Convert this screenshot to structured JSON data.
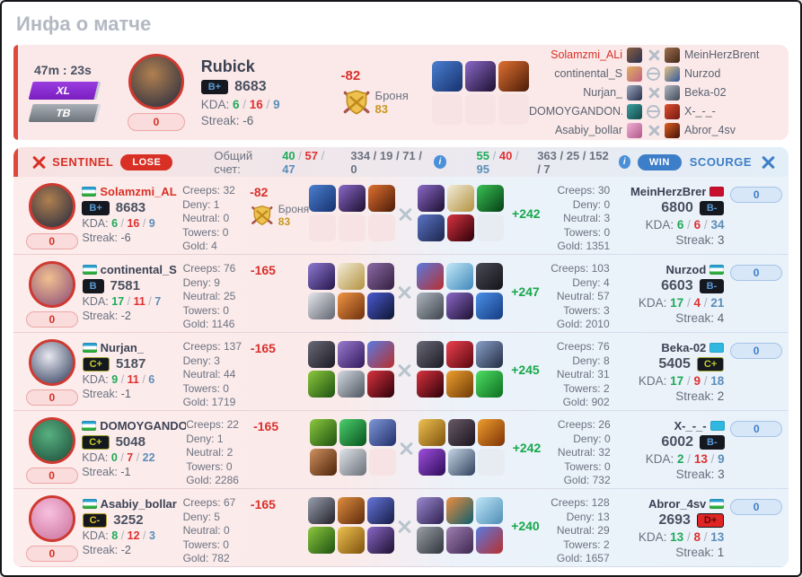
{
  "page": {
    "title": "Инфа о матче"
  },
  "labels": {
    "kda": "KDA:",
    "streak": "Streak:",
    "creeps": "Creeps:",
    "deny": "Deny:",
    "neutral": "Neutral:",
    "towers": "Towers:",
    "gold": "Gold:"
  },
  "colors": {
    "accent_red": "#d93025",
    "accent_blue": "#3d7ec8",
    "green": "#1faa59",
    "kda_blue": "#5b8db8",
    "gold": "#c8961e"
  },
  "rank_styles": {
    "B+": {
      "bg": "#15181f",
      "fg": "#5b9bd5",
      "bd": "#15181f"
    },
    "B": {
      "bg": "#15181f",
      "fg": "#5b9bd5",
      "bd": "#15181f"
    },
    "B-": {
      "bg": "#15181f",
      "fg": "#5b9bd5",
      "bd": "#15181f"
    },
    "C+": {
      "bg": "#15181f",
      "fg": "#c3cc2e",
      "bd": "#9aa325"
    },
    "C-": {
      "bg": "#15181f",
      "fg": "#e3c32e",
      "bd": "#b59a22"
    },
    "D+": {
      "bg": "#e02525",
      "fg": "#5e0808",
      "bd": "#15181f"
    }
  },
  "flag_colors": {
    "uz": [
      "#2aa0d0",
      "#ffffff",
      "#2fae3f"
    ],
    "ton": [
      "#c8102e",
      "#c8102e",
      "#c8102e"
    ],
    "kz": [
      "#30b8e0",
      "#30b8e0",
      "#30b8e0"
    ]
  },
  "header": {
    "time": "47m : 23s",
    "badge_xl": "XL",
    "badge_tb": "ТВ",
    "hero_name": "Rubick",
    "rank": "B+",
    "rating": "8683",
    "kda": [
      "6",
      "16",
      "9"
    ],
    "streak": "-6",
    "counter": "0",
    "armor_delta": "-82",
    "armor_label": "Броня",
    "armor_value": "83",
    "avatar": [
      "#b08050",
      "#22283e"
    ],
    "items": [
      [
        "#4a7fd0",
        "#16316e"
      ],
      [
        "#8a68c8",
        "#1d1030"
      ],
      [
        "#e07030",
        "#4a1c08"
      ],
      null,
      null,
      null
    ],
    "roster": [
      {
        "left": "Solamzmi_ALi",
        "left_hl": true,
        "left_icon": [
          "#8a6040",
          "#2a3050"
        ],
        "mid": "swords",
        "right_icon": [
          "#a07050",
          "#402818"
        ],
        "right": "MeinHerzBrent"
      },
      {
        "left": "continental_S",
        "left_icon": [
          "#e0b060",
          "#c06080"
        ],
        "mid": "globe",
        "right_icon": [
          "#e0c080",
          "#3058a0"
        ],
        "right": "Nurzod"
      },
      {
        "left": "Nurjan_",
        "left_icon": [
          "#9aa8c0",
          "#283048"
        ],
        "mid": "swords",
        "right_icon": [
          "#b0b8c0",
          "#404858"
        ],
        "right": "Beka-02"
      },
      {
        "left": "DOMOYGANDON...",
        "left_icon": [
          "#40a0a0",
          "#104848"
        ],
        "mid": "globe",
        "right_icon": [
          "#e05030",
          "#701810"
        ],
        "right": "X-_-_-"
      },
      {
        "left": "Asabiy_bollar",
        "left_icon": [
          "#f0b0d8",
          "#b05888"
        ],
        "mid": "swords",
        "right_icon": [
          "#e06020",
          "#401008"
        ],
        "right": "Abror_4sv"
      }
    ]
  },
  "scorebar": {
    "left_team": "SENTINEL",
    "left_result": "LOSE",
    "score_label": "Общий счет:",
    "left_kda": [
      "40",
      "57",
      "47"
    ],
    "left_totals": "334 / 19 / 71 / 0",
    "right_kda": [
      "55",
      "40",
      "95"
    ],
    "right_totals": "363 / 25 / 152 / 7",
    "right_result": "WIN",
    "right_team": "SCOURGE",
    "info_glyph": "i"
  },
  "rows": [
    {
      "left": {
        "name": "Solamzmi_AL",
        "flag": "uz",
        "rank": "B+",
        "rating": "8683",
        "kda": [
          "6",
          "16",
          "9"
        ],
        "streak": "-6",
        "counter": "0",
        "highlight": true,
        "avatar": [
          "#b08050",
          "#22283e"
        ]
      },
      "left_stats": {
        "creeps": "32",
        "deny": "1",
        "neutral": "0",
        "towers": "0",
        "gold": "4"
      },
      "armor": {
        "delta": "-82",
        "label": "Броня",
        "value": "83"
      },
      "left_items": [
        [
          "#4a7fd0",
          "#16316e"
        ],
        [
          "#8a68c8",
          "#1d1030"
        ],
        [
          "#e07030",
          "#4a1c08"
        ],
        null,
        null,
        null
      ],
      "right_items": [
        [
          "#8a68c8",
          "#1d1030"
        ],
        [
          "#f2ecd9",
          "#b3923f"
        ],
        [
          "#38c255",
          "#063f14"
        ],
        [
          "#5a74c6",
          "#1c264c"
        ],
        [
          "#d8333f",
          "#2d0008"
        ],
        null
      ],
      "gold_delta": "+242",
      "right_stats": {
        "creeps": "30",
        "deny": "0",
        "neutral": "3",
        "towers": "0",
        "gold": "1351"
      },
      "right": {
        "name": "MeinHerzBrer",
        "flag": "ton",
        "rank": "B-",
        "rating": "6800",
        "kda": [
          "6",
          "6",
          "34"
        ],
        "streak": "3",
        "counter": "0",
        "avatar": [
          "#c09060",
          "#5a3820"
        ]
      }
    },
    {
      "left": {
        "name": "continental_S",
        "flag": "uz",
        "rank": "B",
        "rating": "7581",
        "kda": [
          "17",
          "11",
          "7"
        ],
        "streak": "-2",
        "counter": "0",
        "avatar": [
          "#f0c090",
          "#8a4a78"
        ]
      },
      "left_stats": {
        "creeps": "76",
        "deny": "9",
        "neutral": "25",
        "towers": "0",
        "gold": "1146"
      },
      "armor": {
        "delta": "-165"
      },
      "left_items": [
        [
          "#8d7ad2",
          "#241549"
        ],
        [
          "#f2ecd9",
          "#b3923f"
        ],
        [
          "#8d6aa6",
          "#32203e"
        ],
        [
          "#e6e8ee",
          "#60646e"
        ],
        [
          "#f09542",
          "#6e300d"
        ],
        [
          "#4a5ad0",
          "#0d1430"
        ]
      ],
      "right_items": [
        [
          "#5a7ae0",
          "#b82f2f"
        ],
        [
          "#c2e9f9",
          "#4187ba"
        ],
        [
          "#4a4a58",
          "#131318"
        ],
        [
          "#aeb6bf",
          "#3f444c"
        ],
        [
          "#8a68c8",
          "#1d1030"
        ],
        [
          "#4a90e8",
          "#163a80"
        ]
      ],
      "gold_delta": "+247",
      "right_stats": {
        "creeps": "103",
        "deny": "4",
        "neutral": "57",
        "towers": "3",
        "gold": "2010"
      },
      "right": {
        "name": "Nurzod",
        "flag": "uz",
        "rank": "B-",
        "rating": "6603",
        "kda": [
          "17",
          "4",
          "21"
        ],
        "streak": "4",
        "counter": "0",
        "avatar": [
          "#f0e8d8",
          "#2858a8"
        ]
      }
    },
    {
      "left": {
        "name": "Nurjan_",
        "flag": "uz",
        "rank": "C+",
        "rating": "5187",
        "kda": [
          "9",
          "11",
          "6"
        ],
        "streak": "-1",
        "counter": "0",
        "avatar": [
          "#e8e8f0",
          "#2a3858"
        ]
      },
      "left_stats": {
        "creeps": "137",
        "deny": "3",
        "neutral": "44",
        "towers": "0",
        "gold": "1719"
      },
      "armor": {
        "delta": "-165"
      },
      "left_items": [
        [
          "#6a6a78",
          "#1b1922"
        ],
        [
          "#9a7ad0",
          "#31195a"
        ],
        [
          "#5a7ae0",
          "#b82f2f"
        ],
        [
          "#8cc93e",
          "#1e5110"
        ],
        [
          "#d4dae2",
          "#4e545e"
        ],
        [
          "#d8333f",
          "#2d0008"
        ]
      ],
      "right_items": [
        [
          "#6a6a78",
          "#1b1922"
        ],
        [
          "#ef4150",
          "#57060f"
        ],
        [
          "#8aa0c8",
          "#222c42"
        ],
        [
          "#d8333f",
          "#2d0008"
        ],
        [
          "#eea02f",
          "#6e3a06"
        ],
        [
          "#4ede63",
          "#0c6e20"
        ]
      ],
      "gold_delta": "+245",
      "right_stats": {
        "creeps": "76",
        "deny": "8",
        "neutral": "31",
        "towers": "2",
        "gold": "902"
      },
      "right": {
        "name": "Beka-02",
        "flag": "kz",
        "rank": "C+",
        "rating": "5405",
        "kda": [
          "17",
          "9",
          "18"
        ],
        "streak": "2",
        "counter": "0",
        "avatar": [
          "#d8dce0",
          "#485058"
        ]
      }
    },
    {
      "left": {
        "name": "DOMOYGANDO",
        "flag": "uz",
        "rank": "C+",
        "rating": "5048",
        "kda": [
          "0",
          "7",
          "22"
        ],
        "streak": "-1",
        "counter": "0",
        "avatar": [
          "#58b080",
          "#1a4a38"
        ]
      },
      "left_stats": {
        "creeps": "22",
        "deny": "1",
        "neutral": "2",
        "towers": "0",
        "gold": "2286"
      },
      "armor": {
        "delta": "-165"
      },
      "left_items": [
        [
          "#8cc93e",
          "#1e5110"
        ],
        [
          "#4cd06e",
          "#07521c"
        ],
        [
          "#7e97d8",
          "#22306a"
        ],
        [
          "#cf9060",
          "#4e2409"
        ],
        [
          "#e0e4ea",
          "#6a7078"
        ],
        null
      ],
      "right_items": [
        [
          "#eec14f",
          "#7e520e"
        ],
        [
          "#685a66",
          "#1b141e"
        ],
        [
          "#ee9d2e",
          "#7e3306"
        ],
        [
          "#9e50de",
          "#2e0b58"
        ],
        [
          "#c6d6e6",
          "#32425e"
        ],
        null
      ],
      "gold_delta": "+242",
      "right_stats": {
        "creeps": "26",
        "deny": "0",
        "neutral": "32",
        "towers": "0",
        "gold": "732"
      },
      "right": {
        "name": "X-_-_-",
        "flag": "kz",
        "rank": "B-",
        "rating": "6002",
        "kda": [
          "2",
          "13",
          "9"
        ],
        "streak": "3",
        "counter": "0",
        "avatar": [
          "#f05838",
          "#8a1818"
        ]
      }
    },
    {
      "left": {
        "name": "Asabiy_bollar",
        "flag": "uz",
        "rank": "C-",
        "rating": "3252",
        "kda": [
          "8",
          "12",
          "3"
        ],
        "streak": "-2",
        "counter": "0",
        "avatar": [
          "#f8c0e0",
          "#c87098"
        ]
      },
      "left_stats": {
        "creeps": "67",
        "deny": "5",
        "neutral": "0",
        "towers": "0",
        "gold": "782"
      },
      "armor": {
        "delta": "-165"
      },
      "left_items": [
        [
          "#98a0ae",
          "#23212a"
        ],
        [
          "#de8e3e",
          "#5e2a0c"
        ],
        [
          "#6676da",
          "#161c46"
        ],
        [
          "#8cc93e",
          "#1e5110"
        ],
        [
          "#eec14f",
          "#7e520e"
        ],
        [
          "#8a68c8",
          "#1d1030"
        ]
      ],
      "right_items": [
        [
          "#9a8ad0",
          "#302050"
        ],
        [
          "#ee8e3e",
          "#0e5e6e"
        ],
        [
          "#bfe6f8",
          "#4e8eb6"
        ],
        [
          "#9aa0a8",
          "#30343c"
        ],
        [
          "#a07eb2",
          "#3e2850"
        ],
        [
          "#5a7ae0",
          "#b82f2f"
        ]
      ],
      "gold_delta": "+240",
      "right_stats": {
        "creeps": "128",
        "deny": "13",
        "neutral": "29",
        "towers": "2",
        "gold": "1657"
      },
      "right": {
        "name": "Abror_4sv",
        "flag": "uz",
        "rank": "D+",
        "rating": "2693",
        "kda": [
          "13",
          "8",
          "13"
        ],
        "streak": "1",
        "counter": "0",
        "avatar": [
          "#f07030",
          "#581008"
        ]
      }
    }
  ]
}
